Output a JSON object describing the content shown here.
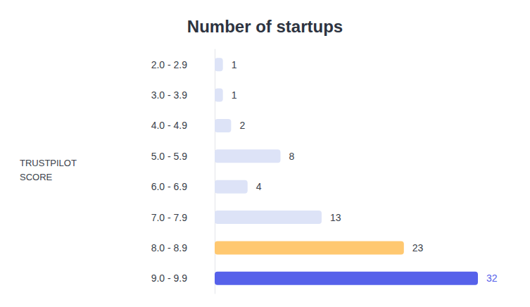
{
  "chart_data": {
    "type": "bar",
    "title": "Number of startups",
    "y_label": "TRUSTPILOT SCORE",
    "orientation": "horizontal",
    "categories": [
      "2.0 - 2.9",
      "3.0 - 3.9",
      "4.0 - 4.9",
      "5.0 - 5.9",
      "6.0 - 6.9",
      "7.0 - 7.9",
      "8.0 - 8.9",
      "9.0 - 9.9"
    ],
    "values": [
      1,
      1,
      2,
      8,
      4,
      13,
      23,
      32
    ],
    "colors": [
      "#dde3f7",
      "#dde3f7",
      "#dde3f7",
      "#dde3f7",
      "#dde3f7",
      "#dde3f7",
      "#ffc870",
      "#5661ea"
    ],
    "xlim": [
      0,
      32
    ],
    "data_labels": true,
    "tick_labels": "y",
    "grid": false
  }
}
